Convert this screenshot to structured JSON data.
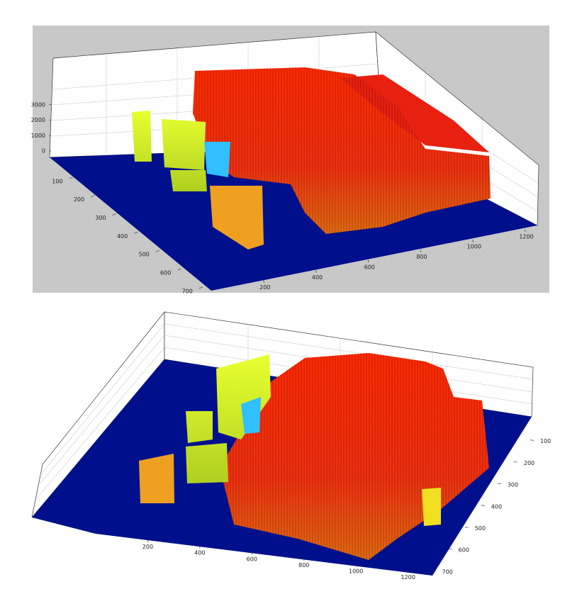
{
  "chart_data": [
    {
      "type": "surface3d",
      "xlim": [
        0,
        1280
      ],
      "xticks": [
        200,
        400,
        600,
        800,
        1000,
        1200
      ],
      "ylim": [
        0,
        720
      ],
      "yticks": [
        100,
        200,
        300,
        400,
        500,
        600,
        700
      ],
      "zlim": [
        0,
        4000
      ],
      "zticks": [
        0,
        1000,
        2000,
        3000
      ]
    },
    {
      "type": "surface3d",
      "xlim": [
        0,
        1280
      ],
      "xticks": [
        200,
        400,
        600,
        800,
        1000,
        1200
      ],
      "ylim": [
        0,
        720
      ],
      "yticks": [
        100,
        200,
        300,
        400,
        500,
        600,
        700
      ]
    }
  ]
}
